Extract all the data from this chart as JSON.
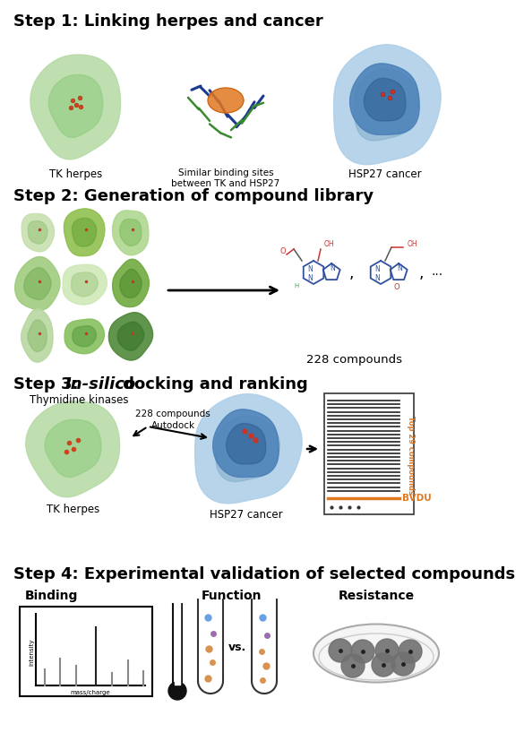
{
  "step1_title": "Step 1: Linking herpes and cancer",
  "step2_title": "Step 2: Generation of compound library",
  "step3_title": "Step 3: ",
  "step3_italic": "In-silico",
  "step3_rest": " docking and ranking",
  "step4_title": "Step 4: Experimental validation of selected compounds",
  "step1_labels": [
    "TK herpes",
    "Similar binding sites\nbetween TK and HSP27",
    "HSP27 cancer"
  ],
  "step2_labels": [
    "Thymidine kinases",
    "228 compounds"
  ],
  "step3_labels": [
    "TK herpes",
    "HSP27 cancer",
    "228 compounds",
    "Autodock",
    "Top 29 compounds",
    "BVDU"
  ],
  "step4_labels": [
    "Binding",
    "Function",
    "Resistance"
  ],
  "step4_axis_x": "mass/charge",
  "step4_axis_y": "intensity",
  "bg_color": "#ffffff",
  "text_color": "#000000",
  "step_title_size": 13,
  "label_size": 8.5,
  "orange_bvdu": "#e07820"
}
